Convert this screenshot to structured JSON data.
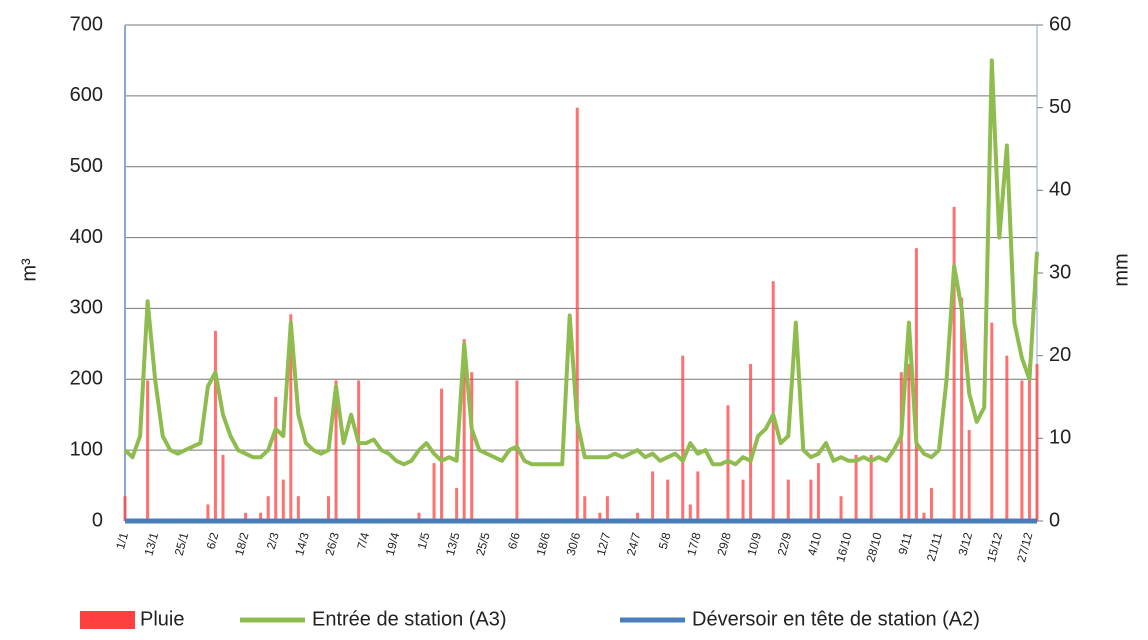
{
  "chart_data": {
    "type": "bar-line",
    "y_label": "m³",
    "y2_label": "mm",
    "categories": [
      "1/1",
      null,
      null,
      null,
      "13/1",
      null,
      null,
      null,
      "25/1",
      null,
      null,
      null,
      "6/2",
      null,
      null,
      null,
      "18/2",
      null,
      null,
      null,
      "2/3",
      null,
      null,
      null,
      "14/3",
      null,
      null,
      null,
      "26/3",
      null,
      null,
      null,
      "7/4",
      null,
      null,
      null,
      "19/4",
      null,
      null,
      null,
      "1/5",
      null,
      null,
      null,
      "13/5",
      null,
      null,
      null,
      "25/5",
      null,
      null,
      null,
      "6/6",
      null,
      null,
      null,
      "18/6",
      null,
      null,
      null,
      "30/6",
      null,
      null,
      null,
      "12/7",
      null,
      null,
      null,
      "24/7",
      null,
      null,
      null,
      "5/8",
      null,
      null,
      null,
      "17/8",
      null,
      null,
      null,
      "29/8",
      null,
      null,
      null,
      "10/9",
      null,
      null,
      null,
      "22/9",
      null,
      null,
      null,
      "4/10",
      null,
      null,
      null,
      "16/10",
      null,
      null,
      null,
      "28/10",
      null,
      null,
      null,
      "9/11",
      null,
      null,
      null,
      "21/11",
      null,
      null,
      null,
      "3/12",
      null,
      null,
      null,
      "15/12",
      null,
      null,
      null,
      "27/12",
      null
    ],
    "series": [
      {
        "name": "Pluie",
        "type": "bar",
        "axis": "y2",
        "color": "#ff4040",
        "values": [
          3,
          0,
          0,
          17,
          0,
          0,
          0,
          0,
          0,
          0,
          0,
          2,
          23,
          8,
          0,
          0,
          1,
          0,
          1,
          3,
          15,
          5,
          25,
          3,
          0,
          0,
          0,
          3,
          17,
          0,
          0,
          17,
          0,
          0,
          0,
          0,
          0,
          0,
          0,
          1,
          0,
          7,
          16,
          0,
          4,
          22,
          18,
          0,
          0,
          0,
          0,
          0,
          17,
          0,
          0,
          0,
          0,
          0,
          0,
          0,
          50,
          3,
          0,
          1,
          3,
          0,
          0,
          0,
          1,
          0,
          6,
          0,
          5,
          0,
          20,
          2,
          6,
          0,
          0,
          0,
          14,
          0,
          5,
          19,
          0,
          0,
          29,
          0,
          5,
          0,
          0,
          5,
          7,
          0,
          0,
          3,
          0,
          8,
          0,
          8,
          0,
          0,
          0,
          18,
          19,
          33,
          1,
          4,
          0,
          0,
          38,
          27,
          11,
          0,
          0,
          24,
          0,
          20,
          0,
          17,
          19,
          19
        ]
      },
      {
        "name": "Entrée de station (A3)",
        "type": "line",
        "axis": "y",
        "color": "#8fbc4f",
        "values": [
          100,
          90,
          120,
          310,
          200,
          120,
          100,
          95,
          100,
          105,
          110,
          190,
          210,
          150,
          120,
          100,
          95,
          90,
          90,
          100,
          130,
          120,
          280,
          150,
          110,
          100,
          95,
          100,
          190,
          110,
          150,
          110,
          110,
          115,
          100,
          95,
          85,
          80,
          85,
          100,
          110,
          95,
          85,
          90,
          85,
          250,
          130,
          100,
          95,
          90,
          85,
          100,
          105,
          85,
          80,
          80,
          80,
          80,
          80,
          290,
          140,
          90,
          90,
          90,
          90,
          95,
          90,
          95,
          100,
          90,
          95,
          85,
          90,
          95,
          85,
          110,
          95,
          100,
          80,
          80,
          85,
          80,
          90,
          85,
          120,
          130,
          150,
          110,
          120,
          280,
          100,
          90,
          95,
          110,
          85,
          90,
          85,
          85,
          90,
          85,
          90,
          85,
          100,
          120,
          280,
          110,
          95,
          90,
          100,
          200,
          360,
          300,
          180,
          140,
          160,
          650,
          400,
          530,
          280,
          230,
          200,
          380
        ]
      },
      {
        "name": "Déversoir en tête de station (A2)",
        "type": "line",
        "axis": "y",
        "color": "#4a7ebb",
        "values": [
          0,
          0,
          0,
          0,
          0,
          0,
          0,
          0,
          0,
          0,
          0,
          0,
          0,
          0,
          0,
          0,
          0,
          0,
          0,
          0,
          0,
          0,
          0,
          0,
          0,
          0,
          0,
          0,
          0,
          0,
          0,
          0,
          0,
          0,
          0,
          0,
          0,
          0,
          0,
          0,
          0,
          0,
          0,
          0,
          0,
          0,
          0,
          0,
          0,
          0,
          0,
          0,
          0,
          0,
          0,
          0,
          0,
          0,
          0,
          0,
          0,
          0,
          0,
          0,
          0,
          0,
          0,
          0,
          0,
          0,
          0,
          0,
          0,
          0,
          0,
          0,
          0,
          0,
          0,
          0,
          0,
          0,
          0,
          0,
          0,
          0,
          0,
          0,
          0,
          0,
          0,
          0,
          0,
          0,
          0,
          0,
          0,
          0,
          0,
          0,
          0,
          0,
          0,
          0,
          0,
          0,
          0,
          0,
          0,
          0,
          0,
          0,
          0,
          0,
          0,
          0,
          0,
          0,
          0,
          0,
          0,
          0
        ]
      }
    ],
    "ylim": [
      0,
      700
    ],
    "yticks": [
      0,
      100,
      200,
      300,
      400,
      500,
      600,
      700
    ],
    "y2lim": [
      0,
      60
    ],
    "y2ticks": [
      0,
      10,
      20,
      30,
      40,
      50,
      60
    ],
    "grid": true,
    "legend": "bottom"
  }
}
